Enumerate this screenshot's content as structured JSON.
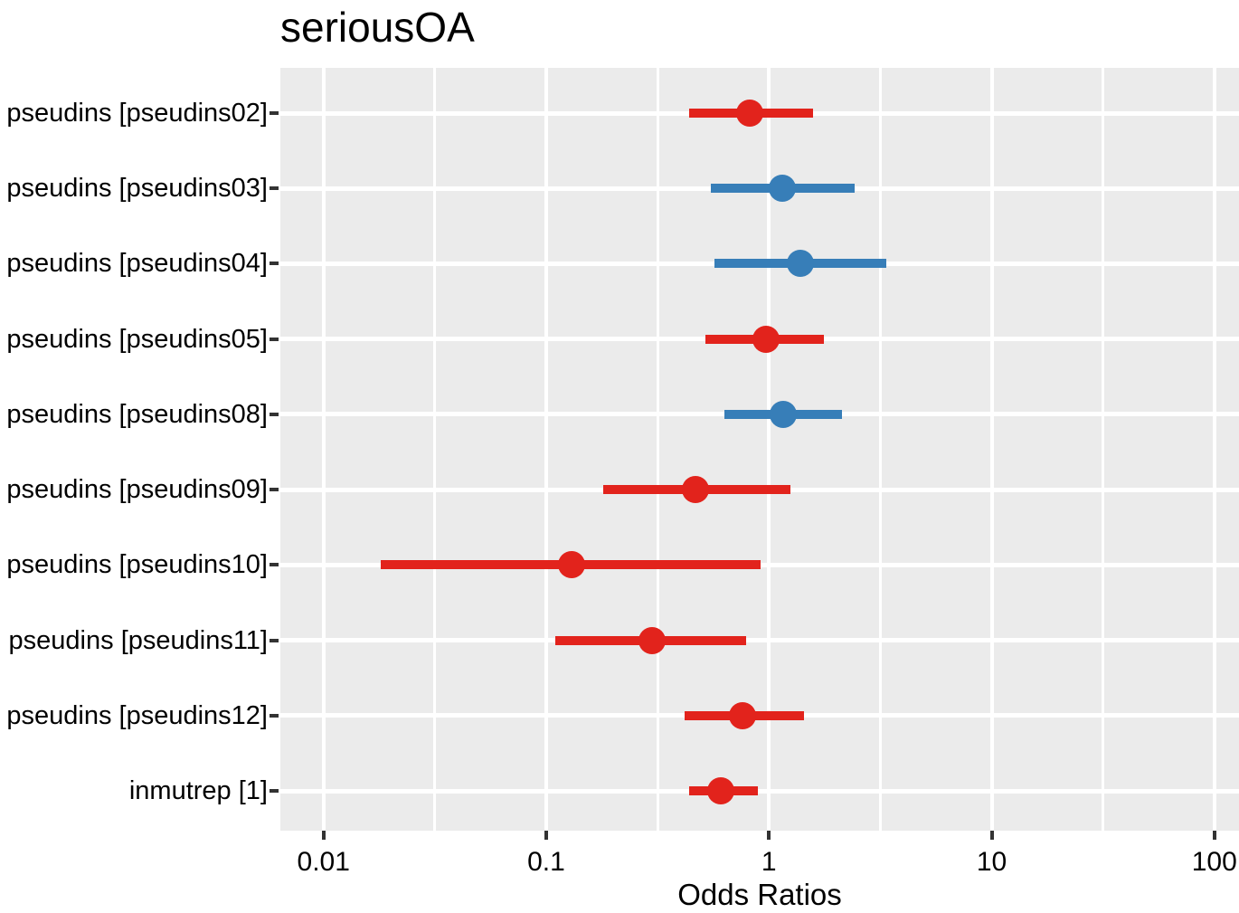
{
  "title": "seriousOA",
  "chart_data": {
    "type": "scatter",
    "subtype": "forest-plot-odds-ratios",
    "title": "seriousOA",
    "xlabel": "Odds Ratios",
    "x_scale": "log10",
    "x_range": [
      0.0064,
      129
    ],
    "x_ticks": [
      0.01,
      0.1,
      1,
      10,
      100
    ],
    "x_tick_labels": [
      "0.01",
      "0.1",
      "1",
      "10",
      "100"
    ],
    "x_minor_ticks": [
      0.0316,
      0.316,
      3.16,
      31.6
    ],
    "grid": "on",
    "legend_position": "none",
    "panel_bg": "#ebebeb",
    "grid_color": "#ffffff",
    "colors": {
      "red": "#e2231c",
      "blue": "#377eb8"
    },
    "rows": [
      {
        "label": "pseudins [pseudins02]",
        "or": 0.82,
        "ci_low": 0.44,
        "ci_high": 1.58,
        "color": "red"
      },
      {
        "label": "pseudins [pseudins03]",
        "or": 1.15,
        "ci_low": 0.55,
        "ci_high": 2.42,
        "color": "blue"
      },
      {
        "label": "pseudins [pseudins04]",
        "or": 1.38,
        "ci_low": 0.57,
        "ci_high": 3.38,
        "color": "blue"
      },
      {
        "label": "pseudins [pseudins05]",
        "or": 0.97,
        "ci_low": 0.52,
        "ci_high": 1.77,
        "color": "red"
      },
      {
        "label": "pseudins [pseudins08]",
        "or": 1.16,
        "ci_low": 0.63,
        "ci_high": 2.12,
        "color": "blue"
      },
      {
        "label": "pseudins [pseudins09]",
        "or": 0.47,
        "ci_low": 0.18,
        "ci_high": 1.25,
        "color": "red"
      },
      {
        "label": "pseudins [pseudins10]",
        "or": 0.13,
        "ci_low": 0.018,
        "ci_high": 0.92,
        "color": "red"
      },
      {
        "label": "pseudins [pseudins11]",
        "or": 0.3,
        "ci_low": 0.11,
        "ci_high": 0.79,
        "color": "red"
      },
      {
        "label": "pseudins [pseudins12]",
        "or": 0.76,
        "ci_low": 0.42,
        "ci_high": 1.44,
        "color": "red"
      },
      {
        "label": "inmutrep [1]",
        "or": 0.61,
        "ci_low": 0.44,
        "ci_high": 0.89,
        "color": "red"
      }
    ]
  }
}
